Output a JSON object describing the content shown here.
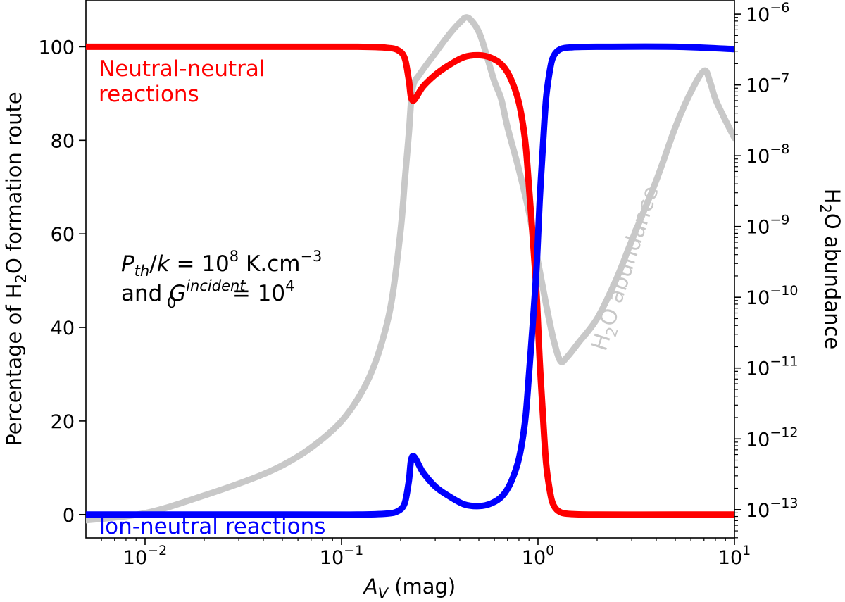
{
  "chart_data": {
    "type": "line",
    "title": "",
    "xlabel": {
      "main": "A",
      "sub": "V",
      "rest": " (mag)"
    },
    "ylabel_left": {
      "pre": "Percentage of H",
      "sub": "2",
      "post": "O formation route"
    },
    "ylabel_right": {
      "pre": "H",
      "sub": "2",
      "post": "O abundance"
    },
    "x_scale": "log",
    "xlim": [
      0.005,
      10
    ],
    "ylim_left": [
      -5,
      110
    ],
    "ylim_right_log10": [
      -13.4,
      -5.8
    ],
    "x_ticks": [
      {
        "value": 0.01,
        "base": "10",
        "exp": "−2"
      },
      {
        "value": 0.1,
        "base": "10",
        "exp": "−1"
      },
      {
        "value": 1,
        "base": "10",
        "exp": "0"
      },
      {
        "value": 10,
        "base": "10",
        "exp": "1"
      }
    ],
    "y_left_ticks": [
      {
        "value": 0,
        "label": "0"
      },
      {
        "value": 20,
        "label": "20"
      },
      {
        "value": 40,
        "label": "40"
      },
      {
        "value": 60,
        "label": "60"
      },
      {
        "value": 80,
        "label": "80"
      },
      {
        "value": 100,
        "label": "100"
      }
    ],
    "y_right_ticks": [
      {
        "value": -13,
        "base": "10",
        "exp": "−13"
      },
      {
        "value": -12,
        "base": "10",
        "exp": "−12"
      },
      {
        "value": -11,
        "base": "10",
        "exp": "−11"
      },
      {
        "value": -10,
        "base": "10",
        "exp": "−10"
      },
      {
        "value": -9,
        "base": "10",
        "exp": "−9"
      },
      {
        "value": -8,
        "base": "10",
        "exp": "−8"
      },
      {
        "value": -7,
        "base": "10",
        "exp": "−7"
      },
      {
        "value": -6,
        "base": "10",
        "exp": "−6"
      }
    ],
    "series": [
      {
        "name": "Neutral-neutral reactions",
        "axis": "left",
        "color": "#ff0000",
        "x": [
          0.005,
          0.05,
          0.12,
          0.17,
          0.195,
          0.21,
          0.22,
          0.23,
          0.26,
          0.3,
          0.35,
          0.42,
          0.5,
          0.58,
          0.66,
          0.73,
          0.8,
          0.86,
          0.9,
          0.93,
          0.96,
          0.99,
          1.02,
          1.06,
          1.1,
          1.15,
          1.2,
          1.3,
          1.5,
          2,
          5,
          10
        ],
        "y": [
          100,
          100,
          100,
          99.8,
          99.2,
          97.5,
          93,
          88.5,
          91.5,
          94,
          96,
          97.8,
          98.2,
          97.6,
          96,
          93,
          88,
          80,
          70,
          62,
          54,
          45,
          33,
          21,
          11,
          5,
          2,
          0.5,
          0.1,
          0,
          0,
          0
        ]
      },
      {
        "name": "Ion-neutral reactions",
        "axis": "left",
        "color": "#0000ff",
        "x": [
          0.005,
          0.05,
          0.12,
          0.17,
          0.195,
          0.21,
          0.22,
          0.23,
          0.26,
          0.3,
          0.35,
          0.42,
          0.5,
          0.58,
          0.66,
          0.73,
          0.8,
          0.86,
          0.9,
          0.93,
          0.96,
          0.99,
          1.02,
          1.06,
          1.1,
          1.15,
          1.2,
          1.3,
          1.5,
          2,
          5,
          10
        ],
        "y": [
          0,
          0,
          0,
          0.2,
          0.8,
          2.5,
          7,
          12.5,
          9,
          6,
          4,
          2.2,
          1.8,
          2.4,
          4,
          7,
          12,
          20,
          30,
          38,
          46,
          55,
          67,
          79,
          89,
          95,
          98,
          99.5,
          99.9,
          100,
          100,
          99.5
        ]
      },
      {
        "name": "H2O abundance",
        "axis": "right",
        "color": "#c8c8c8",
        "x": [
          0.005,
          0.01,
          0.02,
          0.04,
          0.06,
          0.08,
          0.1,
          0.12,
          0.14,
          0.16,
          0.18,
          0.2,
          0.21,
          0.22,
          0.23,
          0.25,
          0.3,
          0.35,
          0.4,
          0.44,
          0.5,
          0.55,
          0.6,
          0.65,
          0.7,
          0.8,
          0.9,
          1.0,
          1.1,
          1.2,
          1.3,
          1.4,
          1.6,
          2,
          2.5,
          3,
          4,
          5,
          6,
          7,
          7.5,
          8,
          9,
          10
        ],
        "y_log10": [
          -13.15,
          -13.05,
          -12.8,
          -12.5,
          -12.25,
          -12.0,
          -11.75,
          -11.45,
          -11.1,
          -10.65,
          -10.05,
          -9.05,
          -8.35,
          -7.7,
          -7.05,
          -6.85,
          -6.55,
          -6.3,
          -6.12,
          -6.05,
          -6.25,
          -6.6,
          -6.95,
          -7.2,
          -7.6,
          -8.2,
          -8.8,
          -9.5,
          -10.1,
          -10.6,
          -10.9,
          -10.85,
          -10.65,
          -10.3,
          -9.75,
          -9.2,
          -8.35,
          -7.6,
          -7.1,
          -6.8,
          -6.95,
          -7.2,
          -7.5,
          -7.75
        ]
      }
    ],
    "annotations": {
      "neutral_line1": "Neutral-neutral",
      "neutral_line2": "reactions",
      "ion": "Ion-neutral reactions",
      "pressure": {
        "p": "P",
        "psub": "th",
        "mid": "/",
        "k": "k",
        "eq": " = 10",
        "exp": "8",
        "unit": " K.cm",
        "unitexp": "−3"
      },
      "field": {
        "and": "and ",
        "g": "G",
        "gsub": "0",
        "gsup": "incident",
        "eq": " = 10",
        "exp": "4"
      },
      "abundance": {
        "pre": "H",
        "sub": "2",
        "post": "O abundance"
      }
    }
  }
}
